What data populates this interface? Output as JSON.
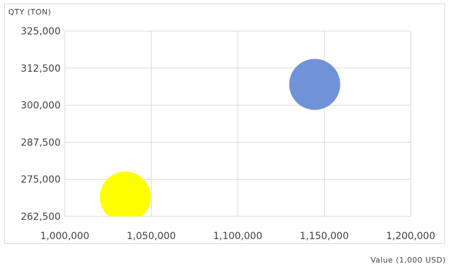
{
  "chart_data": {
    "type": "scatter",
    "bubble": true,
    "title": "",
    "ylabel": "QTY (TON)",
    "xlabel": "Value (1,000 USD)",
    "xlim": [
      1000000,
      1200000
    ],
    "ylim": [
      262500,
      325000
    ],
    "x_ticks": [
      1000000,
      1050000,
      1100000,
      1150000,
      1200000
    ],
    "x_tick_labels": [
      "1,000,000",
      "1,050,000",
      "1,100,000",
      "1,150,000",
      "1,200,000"
    ],
    "y_ticks": [
      262500,
      275000,
      287500,
      300000,
      312500,
      325000
    ],
    "y_tick_labels": [
      "262,500",
      "275,000",
      "287,500",
      "300,000",
      "312,500",
      "325,000"
    ],
    "grid": true,
    "legend": "none",
    "points": [
      {
        "x": 1035000,
        "y": 269000,
        "color": "#ffff00"
      },
      {
        "x": 1144500,
        "y": 307000,
        "color": "#6f93d6"
      }
    ]
  }
}
